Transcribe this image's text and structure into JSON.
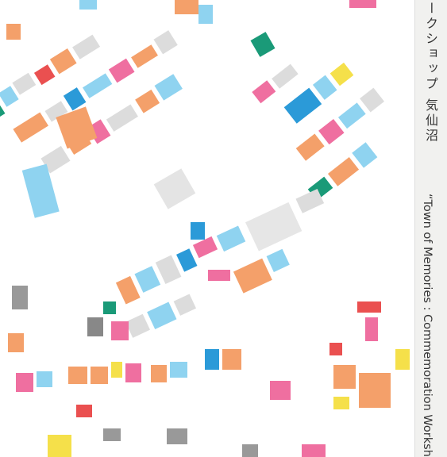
{
  "texts": {
    "japanese": "ークショップ 気仙沼",
    "english": "“Town of Memories : Commemoration Workshop i"
  }
}
